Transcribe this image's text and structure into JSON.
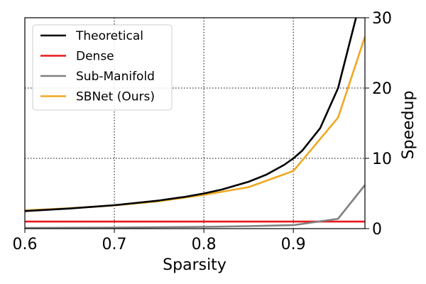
{
  "chart_data": {
    "type": "line",
    "title": "",
    "xlabel": "Sparsity",
    "ylabel": "Speedup",
    "xlim": [
      0.6,
      0.98
    ],
    "ylim": [
      0,
      30
    ],
    "x_ticks": [
      "0.6",
      "0.7",
      "0.8",
      "0.9"
    ],
    "y_ticks": [
      "0",
      "10",
      "20",
      "30"
    ],
    "x_tick_values": [
      0.6,
      0.7,
      0.8,
      0.9
    ],
    "y_tick_values": [
      0,
      10,
      20,
      30
    ],
    "grid": true,
    "legend_position": "top-left",
    "series": [
      {
        "name": "Theoretical",
        "color": "#000000",
        "x": [
          0.6,
          0.65,
          0.7,
          0.75,
          0.78,
          0.8,
          0.82,
          0.85,
          0.87,
          0.89,
          0.9,
          0.91,
          0.93,
          0.95,
          0.97
        ],
        "y": [
          2.5,
          2.86,
          3.33,
          4.0,
          4.55,
          5.0,
          5.56,
          6.67,
          7.69,
          9.09,
          10.0,
          11.1,
          14.3,
          20.0,
          30.0
        ]
      },
      {
        "name": "Dense",
        "color": "#e8191b",
        "x": [
          0.6,
          0.98
        ],
        "y": [
          1.0,
          1.0
        ]
      },
      {
        "name": "Sub-Manifold",
        "color": "#808080",
        "x": [
          0.6,
          0.7,
          0.8,
          0.85,
          0.9,
          0.95,
          0.98
        ],
        "y": [
          0.1,
          0.15,
          0.25,
          0.35,
          0.5,
          1.4,
          6.2
        ]
      },
      {
        "name": "SBNet (Ours)",
        "color": "#f0a822",
        "x": [
          0.6,
          0.65,
          0.7,
          0.75,
          0.8,
          0.85,
          0.9,
          0.95,
          0.98
        ],
        "y": [
          2.6,
          2.9,
          3.3,
          3.9,
          4.8,
          5.9,
          8.2,
          15.8,
          27.3
        ]
      }
    ]
  }
}
